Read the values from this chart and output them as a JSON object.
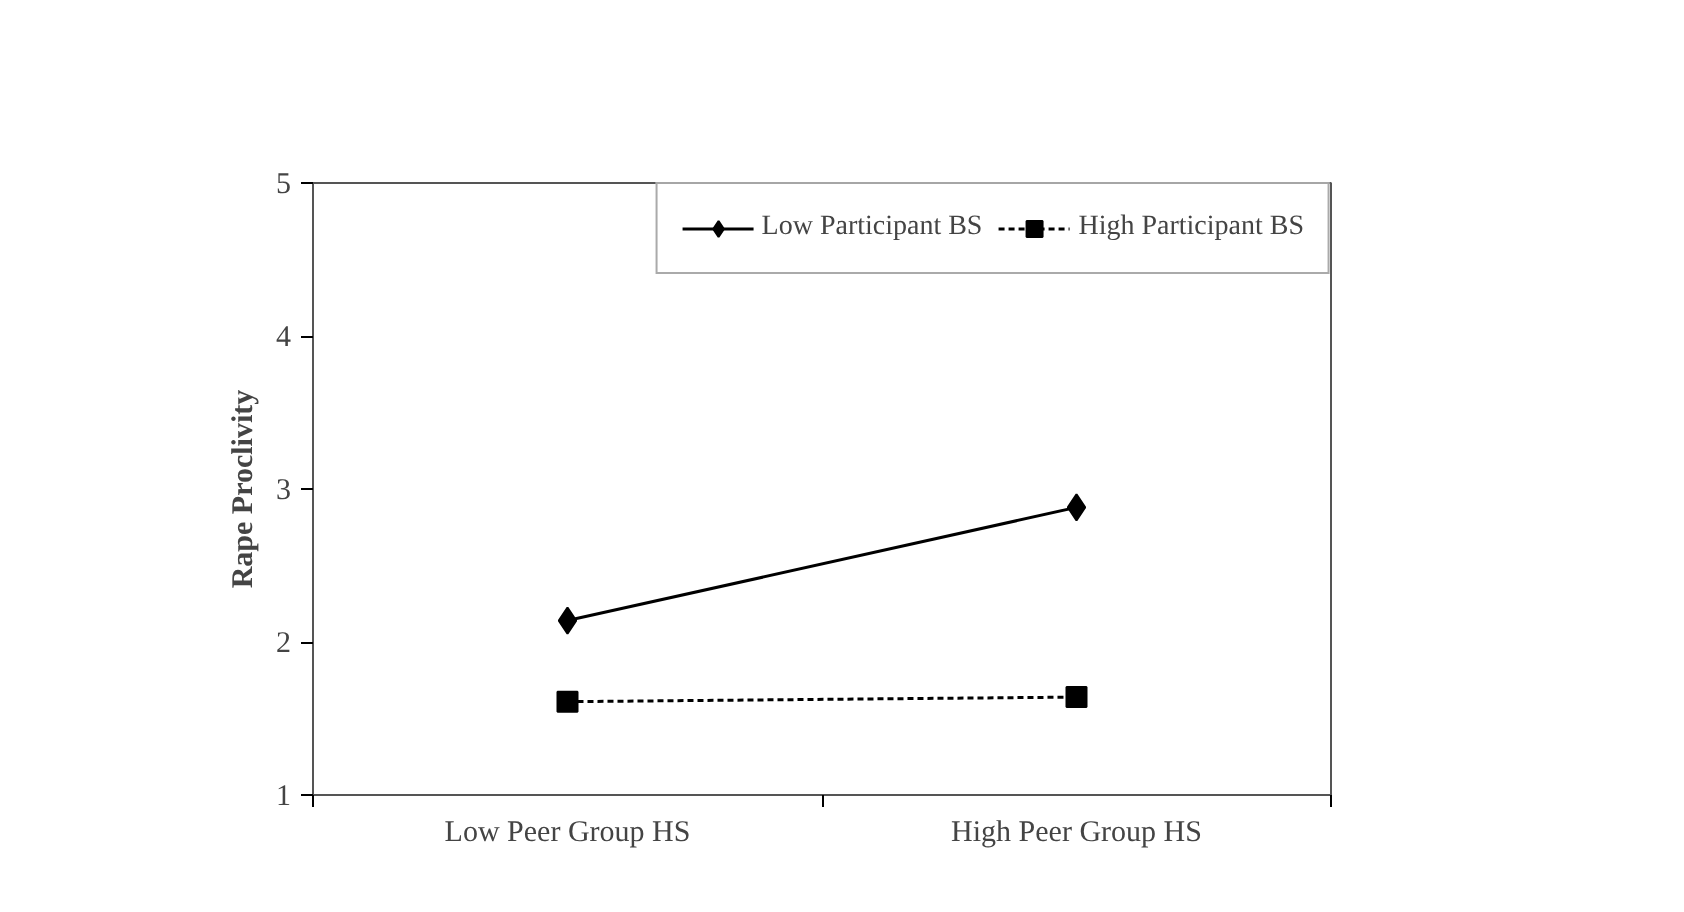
{
  "chart_data": {
    "type": "line",
    "ylabel": "Rape Proclivity",
    "categories": [
      "Low Peer Group HS",
      "High Peer Group HS"
    ],
    "series": [
      {
        "name": "Low Participant BS",
        "color": "#000000",
        "values": [
          2.14,
          2.88
        ],
        "marker": "diamond",
        "line_style": "solid"
      },
      {
        "name": "High Participant BS",
        "color": "#000000",
        "values": [
          1.61,
          1.64
        ],
        "marker": "square",
        "line_style": "dashed"
      }
    ],
    "ylim": [
      1,
      5
    ],
    "yticks": [
      1,
      2,
      3,
      4,
      5
    ],
    "grid": false,
    "legend": "top right"
  }
}
